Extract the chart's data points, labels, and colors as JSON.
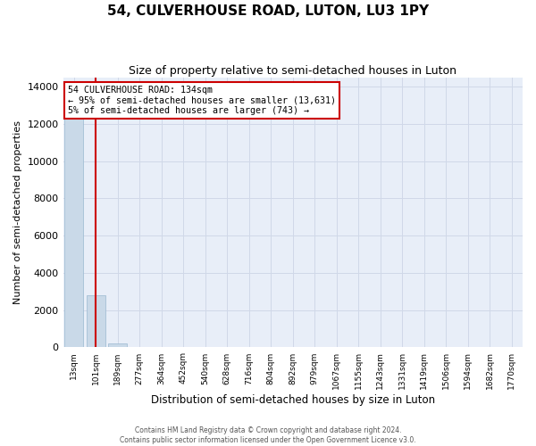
{
  "title": "54, CULVERHOUSE ROAD, LUTON, LU3 1PY",
  "subtitle": "Size of property relative to semi-detached houses in Luton",
  "xlabel": "Distribution of semi-detached houses by size in Luton",
  "ylabel": "Number of semi-detached properties",
  "categories": [
    "13sqm",
    "101sqm",
    "189sqm",
    "277sqm",
    "364sqm",
    "452sqm",
    "540sqm",
    "628sqm",
    "716sqm",
    "804sqm",
    "892sqm",
    "979sqm",
    "1067sqm",
    "1155sqm",
    "1243sqm",
    "1331sqm",
    "1419sqm",
    "1506sqm",
    "1594sqm",
    "1682sqm",
    "1770sqm"
  ],
  "bar_values": [
    13286,
    2800,
    200,
    0,
    0,
    0,
    0,
    0,
    0,
    0,
    0,
    0,
    0,
    0,
    0,
    0,
    0,
    0,
    0,
    0,
    0
  ],
  "bar_color": "#c9d9e8",
  "bar_edge_color": "#9ab8d0",
  "property_line_x": 1.0,
  "property_line_color": "#cc0000",
  "annotation_text": "54 CULVERHOUSE ROAD: 134sqm\n← 95% of semi-detached houses are smaller (13,631)\n5% of semi-detached houses are larger (743) →",
  "annotation_box_color": "#ffffff",
  "annotation_box_edge_color": "#cc0000",
  "ylim": [
    0,
    14500
  ],
  "yticks": [
    0,
    2000,
    4000,
    6000,
    8000,
    10000,
    12000,
    14000
  ],
  "grid_color": "#d0d8e8",
  "bg_color": "#e8eef8",
  "fig_bg_color": "#ffffff",
  "footer_line1": "Contains HM Land Registry data © Crown copyright and database right 2024.",
  "footer_line2": "Contains public sector information licensed under the Open Government Licence v3.0."
}
